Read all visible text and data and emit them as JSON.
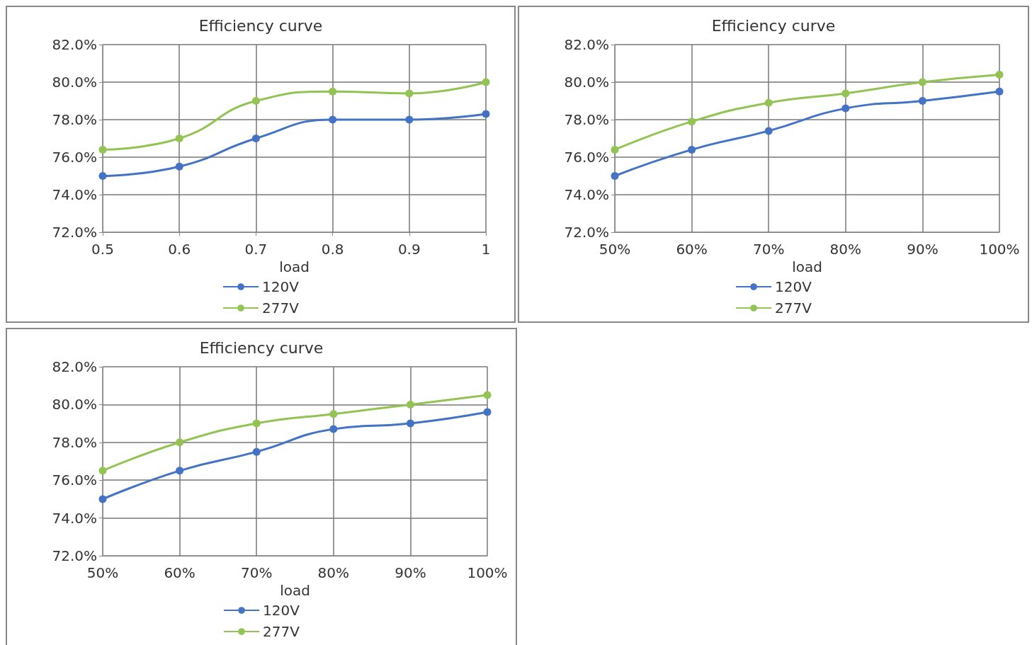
{
  "chart_data": [
    {
      "type": "line",
      "title": "Efficiency curve",
      "xlabel": "load",
      "x": [
        0.5,
        0.6,
        0.7,
        0.8,
        0.9,
        1
      ],
      "xlim": [
        0.5,
        1
      ],
      "xticks": [
        0.5,
        0.6,
        0.7,
        0.8,
        0.9,
        1
      ],
      "ylim": [
        72,
        82
      ],
      "yticks": [
        {
          "value": 72,
          "label": "72.0%"
        },
        {
          "value": 74,
          "label": "74.0%"
        },
        {
          "value": 76,
          "label": "76.0%"
        },
        {
          "value": 78,
          "label": "78.0%"
        },
        {
          "value": 80,
          "label": "80.0%"
        },
        {
          "value": 82,
          "label": "82.0%"
        }
      ],
      "grid": true,
      "legend": "bottom",
      "marker": "circle",
      "line_style": "solid",
      "series": [
        {
          "name": "120V",
          "color": "#4472c4",
          "values": [
            75.0,
            75.5,
            77.0,
            78.0,
            78.0,
            78.3
          ]
        },
        {
          "name": "277V",
          "color": "#92c353",
          "values": [
            76.4,
            77.0,
            79.0,
            79.5,
            79.4,
            80.0
          ]
        }
      ]
    },
    {
      "type": "line",
      "title": "Efficiency curve",
      "xlabel": "load",
      "categories": [
        "50%",
        "60%",
        "70%",
        "80%",
        "90%",
        "100%"
      ],
      "ylim": [
        72,
        82
      ],
      "yticks": [
        {
          "value": 72,
          "label": "72.0%"
        },
        {
          "value": 74,
          "label": "74.0%"
        },
        {
          "value": 76,
          "label": "76.0%"
        },
        {
          "value": 78,
          "label": "78.0%"
        },
        {
          "value": 80,
          "label": "80.0%"
        },
        {
          "value": 82,
          "label": "82.0%"
        }
      ],
      "grid": true,
      "legend": "bottom",
      "marker": "circle",
      "line_style": "solid",
      "series": [
        {
          "name": "120V",
          "color": "#4472c4",
          "values": [
            75.0,
            76.4,
            77.4,
            78.6,
            79.0,
            79.5
          ]
        },
        {
          "name": "277V",
          "color": "#92c353",
          "values": [
            76.4,
            77.9,
            78.9,
            79.4,
            80.0,
            80.4
          ]
        }
      ]
    },
    {
      "type": "line",
      "title": "Efficiency curve",
      "xlabel": "load",
      "categories": [
        "50%",
        "60%",
        "70%",
        "80%",
        "90%",
        "100%"
      ],
      "ylim": [
        72,
        82
      ],
      "yticks": [
        {
          "value": 72,
          "label": "72.0%"
        },
        {
          "value": 74,
          "label": "74.0%"
        },
        {
          "value": 76,
          "label": "76.0%"
        },
        {
          "value": 78,
          "label": "78.0%"
        },
        {
          "value": 80,
          "label": "80.0%"
        },
        {
          "value": 82,
          "label": "82.0%"
        }
      ],
      "grid": true,
      "legend": "bottom",
      "marker": "circle",
      "line_style": "solid",
      "series": [
        {
          "name": "120V",
          "color": "#4472c4",
          "values": [
            75.0,
            76.5,
            77.5,
            78.7,
            79.0,
            79.6
          ]
        },
        {
          "name": "277V",
          "color": "#92c353",
          "values": [
            76.5,
            78.0,
            79.0,
            79.5,
            80.0,
            80.5
          ]
        }
      ]
    }
  ]
}
